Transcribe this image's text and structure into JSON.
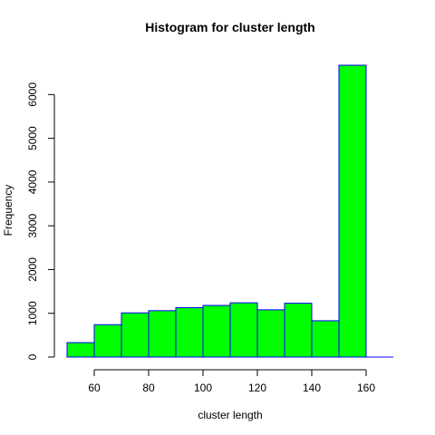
{
  "chart_data": {
    "type": "bar",
    "subtype": "histogram",
    "title": "Histogram for cluster length",
    "xlabel": "cluster length",
    "ylabel": "Frequency",
    "bin_edges": [
      50,
      60,
      70,
      80,
      90,
      100,
      110,
      120,
      130,
      140,
      150,
      160,
      170
    ],
    "values": [
      330,
      740,
      1010,
      1060,
      1130,
      1180,
      1240,
      1080,
      1230,
      830,
      6670,
      0
    ],
    "xticks": [
      60,
      80,
      100,
      120,
      140,
      160
    ],
    "yticks": [
      0,
      1000,
      2000,
      3000,
      4000,
      5000,
      6000
    ],
    "xlim": [
      50,
      170
    ],
    "ylim": [
      0,
      6670
    ],
    "grid": false,
    "bar_fill": "#00ff00",
    "bar_border": "#0000ff"
  }
}
